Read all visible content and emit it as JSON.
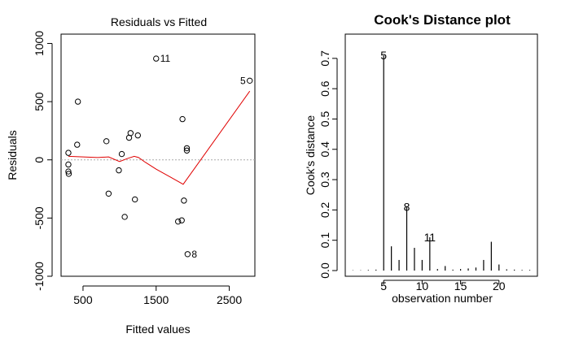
{
  "chart_data": [
    {
      "type": "scatter",
      "title": "Residuals vs Fitted",
      "xlabel": "Fitted values",
      "ylabel": "Residuals",
      "xlim": [
        200,
        2850
      ],
      "ylim": [
        -1000,
        1080
      ],
      "xticks": [
        {
          "value": 500,
          "label": "500"
        },
        {
          "value": 1500,
          "label": "1500"
        },
        {
          "value": 2500,
          "label": "2500"
        }
      ],
      "yticks": [
        {
          "value": -1000,
          "label": "-1000"
        },
        {
          "value": -500,
          "label": "-500"
        },
        {
          "value": 0,
          "label": "0"
        },
        {
          "value": 500,
          "label": "500"
        },
        {
          "value": 1000,
          "label": "1000"
        }
      ],
      "reference_line": 0,
      "points": [
        {
          "x": 300,
          "y": 60
        },
        {
          "x": 300,
          "y": -40
        },
        {
          "x": 300,
          "y": -100
        },
        {
          "x": 305,
          "y": -120
        },
        {
          "x": 420,
          "y": 130
        },
        {
          "x": 430,
          "y": 500
        },
        {
          "x": 820,
          "y": 160
        },
        {
          "x": 850,
          "y": -290
        },
        {
          "x": 990,
          "y": -90
        },
        {
          "x": 1030,
          "y": 50
        },
        {
          "x": 1070,
          "y": -490
        },
        {
          "x": 1130,
          "y": 190
        },
        {
          "x": 1150,
          "y": 230
        },
        {
          "x": 1210,
          "y": -340
        },
        {
          "x": 1250,
          "y": 210
        },
        {
          "x": 1500,
          "y": 870
        },
        {
          "x": 1800,
          "y": -530
        },
        {
          "x": 1850,
          "y": -520
        },
        {
          "x": 1860,
          "y": 350
        },
        {
          "x": 1880,
          "y": -350
        },
        {
          "x": 1920,
          "y": 100
        },
        {
          "x": 1920,
          "y": 80
        },
        {
          "x": 1930,
          "y": -810
        },
        {
          "x": 2780,
          "y": 680
        }
      ],
      "point_labels": [
        {
          "x": 1500,
          "y": 870,
          "label": "11",
          "side": "right"
        },
        {
          "x": 1930,
          "y": -810,
          "label": "8",
          "side": "right"
        },
        {
          "x": 2780,
          "y": 680,
          "label": "5",
          "side": "left"
        }
      ],
      "smoother": {
        "color": "#e00000",
        "x": [
          300,
          500,
          700,
          850,
          1000,
          1100,
          1200,
          1260,
          1350,
          1500,
          1700,
          1870,
          2780
        ],
        "y": [
          30,
          25,
          20,
          25,
          -15,
          10,
          30,
          20,
          -20,
          -80,
          -150,
          -210,
          590
        ]
      }
    },
    {
      "type": "bar",
      "title": "Cook's Distance plot",
      "xlabel": "observation number",
      "ylabel": "Cook's distance",
      "xlim": [
        0,
        25
      ],
      "ylim": [
        0,
        0.78
      ],
      "xticks": [
        {
          "value": 5,
          "label": "5"
        },
        {
          "value": 10,
          "label": "10"
        },
        {
          "value": 15,
          "label": "15"
        },
        {
          "value": 20,
          "label": "20"
        }
      ],
      "yticks": [
        {
          "value": 0,
          "label": "0.0"
        },
        {
          "value": 0.1,
          "label": "0.1"
        },
        {
          "value": 0.2,
          "label": "0.2"
        },
        {
          "value": 0.3,
          "label": "0.3"
        },
        {
          "value": 0.4,
          "label": "0.4"
        },
        {
          "value": 0.5,
          "label": "0.5"
        },
        {
          "value": 0.6,
          "label": "0.6"
        },
        {
          "value": 0.7,
          "label": "0.7"
        }
      ],
      "x": [
        1,
        2,
        3,
        4,
        5,
        6,
        7,
        8,
        9,
        10,
        11,
        12,
        13,
        14,
        15,
        16,
        17,
        18,
        19,
        20,
        21,
        22,
        23,
        24
      ],
      "values": [
        0.001,
        0.001,
        0.002,
        0.003,
        0.71,
        0.08,
        0.035,
        0.21,
        0.075,
        0.035,
        0.11,
        0.005,
        0.015,
        0.003,
        0.005,
        0.007,
        0.01,
        0.035,
        0.095,
        0.02,
        0.004,
        0.003,
        0.002,
        0.002
      ],
      "point_labels": [
        {
          "x": 5,
          "y": 0.71,
          "label": "5"
        },
        {
          "x": 8,
          "y": 0.21,
          "label": "8"
        },
        {
          "x": 11,
          "y": 0.11,
          "label": "11"
        }
      ]
    }
  ]
}
